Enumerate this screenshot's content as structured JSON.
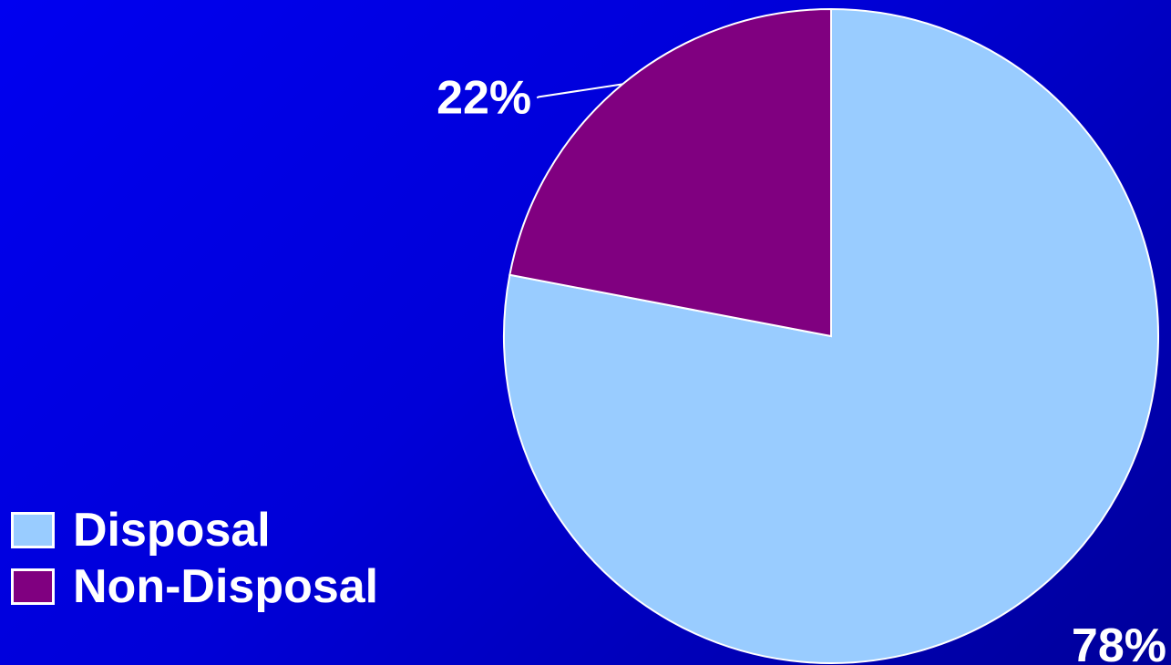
{
  "chart_data": {
    "type": "pie",
    "title": "",
    "categories": [
      "Disposal",
      "Non-Disposal"
    ],
    "values": [
      78,
      22
    ],
    "value_unit": "%",
    "data_labels": [
      "78%",
      "22%"
    ],
    "colors": [
      "#99ccff",
      "#800080"
    ],
    "start_angle": "12 o'clock",
    "direction": "clockwise",
    "legend_placement": "bottom-left"
  },
  "legend": {
    "items": [
      {
        "label": "Disposal",
        "color": "#99ccff"
      },
      {
        "label": "Non-Disposal",
        "color": "#800080"
      }
    ]
  }
}
